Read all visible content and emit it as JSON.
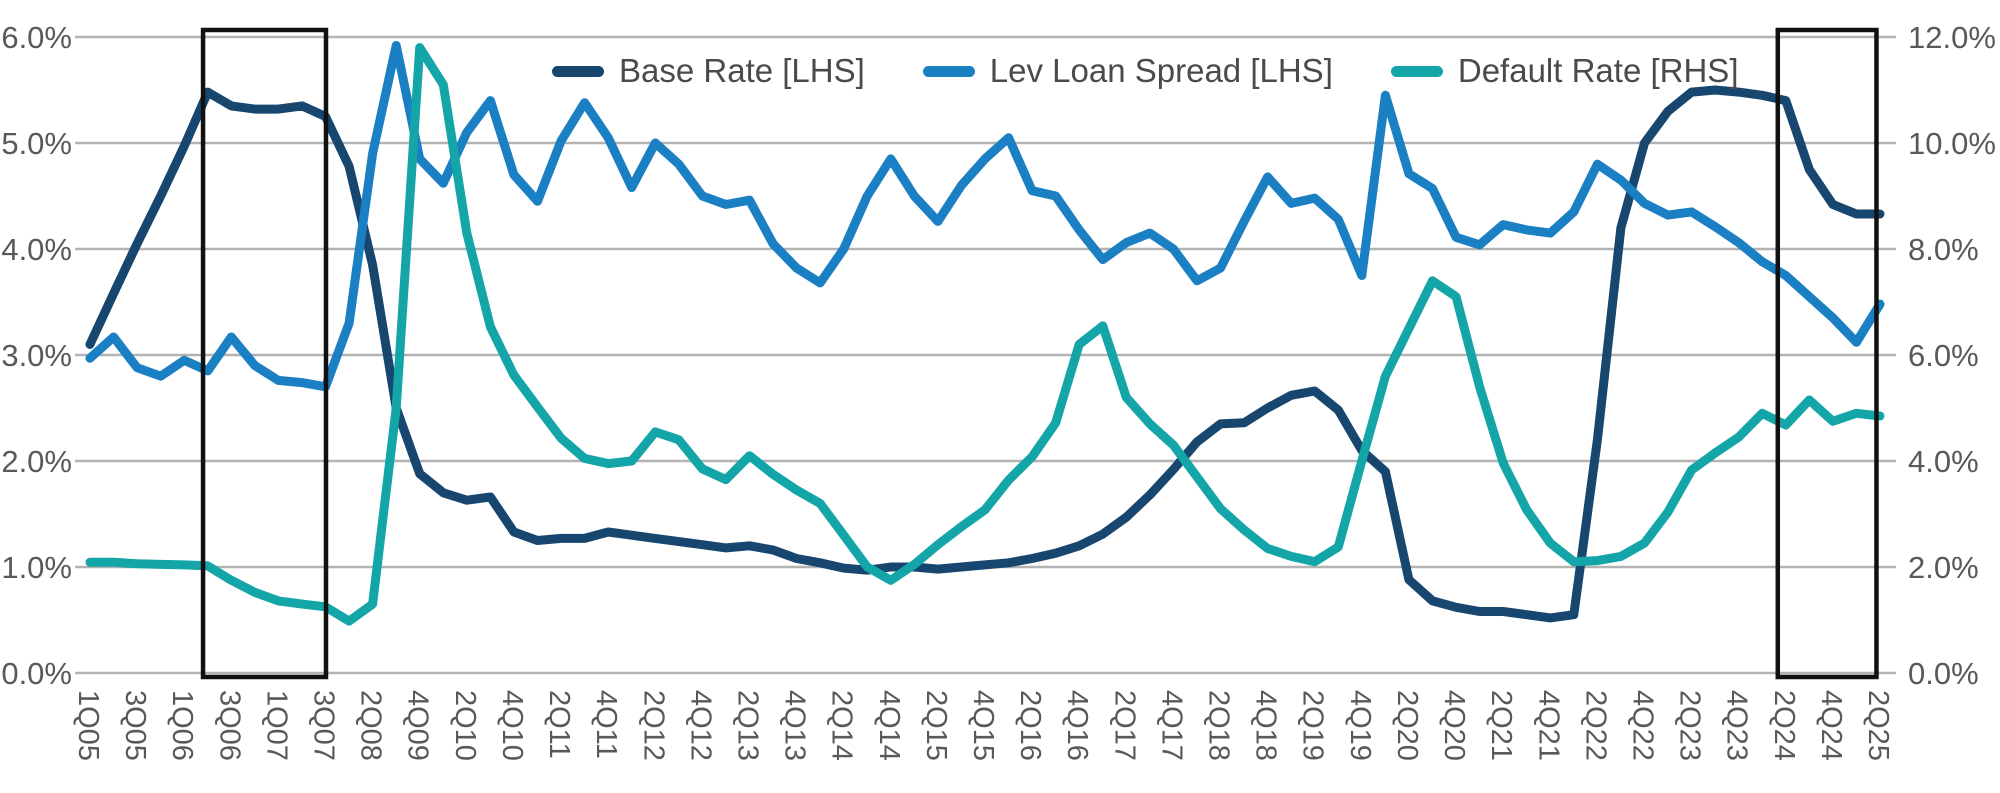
{
  "chart_data": {
    "type": "line",
    "title": "",
    "x_labels": [
      "1Q05",
      "3Q05",
      "1Q06",
      "3Q06",
      "1Q07",
      "3Q07",
      "2Q08",
      "4Q09",
      "2Q10",
      "4Q10",
      "2Q11",
      "4Q11",
      "2Q12",
      "4Q12",
      "2Q13",
      "4Q13",
      "2Q14",
      "4Q14",
      "2Q15",
      "4Q15",
      "2Q16",
      "4Q16",
      "2Q17",
      "4Q17",
      "2Q18",
      "4Q18",
      "2Q19",
      "4Q19",
      "2Q20",
      "4Q20",
      "2Q21",
      "4Q21",
      "2Q22",
      "4Q22",
      "2Q23",
      "4Q23",
      "2Q24",
      "4Q24",
      "2Q25"
    ],
    "points_per_label": 2,
    "left_axis": {
      "min": 0,
      "max": 6,
      "step": 1,
      "tick_labels": [
        "0.0%",
        "1.0%",
        "2.0%",
        "3.0%",
        "4.0%",
        "5.0%",
        "6.0%"
      ]
    },
    "right_axis": {
      "min": 0,
      "max": 12,
      "step": 2,
      "tick_labels": [
        "0.0%",
        "2.0%",
        "4.0%",
        "6.0%",
        "8.0%",
        "10.0%",
        "12.0%"
      ]
    },
    "grid": true,
    "legend_position": "top-center",
    "colors": {
      "base_rate": "#17466F",
      "lev_loan_spread": "#1B7FC4",
      "default_rate": "#14A5A8",
      "gridline": "#b3b3b3",
      "axis_text": "#595959",
      "highlight_box": "#111111"
    },
    "highlight_boxes": [
      {
        "name": "pre-gfc-window",
        "start_index": 4.8,
        "end_index": 10.02
      },
      {
        "name": "current-window",
        "start_index": 71.66,
        "end_index": 75.85
      }
    ],
    "series": [
      {
        "name": "Base Rate [LHS]",
        "axis": "left",
        "color": "#17466F",
        "values": [
          3.1,
          3.58,
          4.05,
          4.5,
          4.97,
          5.48,
          5.35,
          5.32,
          5.32,
          5.35,
          5.25,
          4.78,
          3.85,
          2.5,
          1.88,
          1.7,
          1.63,
          1.66,
          1.33,
          1.25,
          1.27,
          1.27,
          1.33,
          1.3,
          1.27,
          1.24,
          1.21,
          1.18,
          1.2,
          1.16,
          1.08,
          1.04,
          0.99,
          0.97,
          1.0,
          1.0,
          0.98,
          1.0,
          1.02,
          1.04,
          1.08,
          1.13,
          1.2,
          1.31,
          1.47,
          1.68,
          1.92,
          2.18,
          2.35,
          2.36,
          2.5,
          2.62,
          2.66,
          2.48,
          2.1,
          1.9,
          0.88,
          0.68,
          0.62,
          0.58,
          0.58,
          0.55,
          0.52,
          0.55,
          2.2,
          4.2,
          5.0,
          5.3,
          5.48,
          5.5,
          5.48,
          5.45,
          5.4,
          4.75,
          4.42,
          4.33,
          4.33
        ]
      },
      {
        "name": "Lev Loan Spread [LHS]",
        "axis": "left",
        "color": "#1B7FC4",
        "values": [
          2.97,
          3.17,
          2.88,
          2.8,
          2.95,
          2.85,
          3.17,
          2.9,
          2.76,
          2.74,
          2.7,
          3.3,
          4.9,
          5.92,
          4.85,
          4.62,
          5.1,
          5.4,
          4.7,
          4.45,
          5.02,
          5.38,
          5.05,
          4.58,
          5.0,
          4.8,
          4.5,
          4.42,
          4.46,
          4.05,
          3.82,
          3.68,
          4.0,
          4.5,
          4.85,
          4.5,
          4.26,
          4.6,
          4.85,
          5.05,
          4.55,
          4.5,
          4.18,
          3.9,
          4.06,
          4.15,
          4.0,
          3.7,
          3.82,
          4.26,
          4.68,
          4.43,
          4.48,
          4.28,
          3.75,
          5.45,
          4.71,
          4.57,
          4.11,
          4.04,
          4.23,
          4.18,
          4.15,
          4.35,
          4.8,
          4.65,
          4.43,
          4.32,
          4.35,
          4.21,
          4.06,
          3.88,
          3.75,
          3.55,
          3.35,
          3.12,
          3.48
        ]
      },
      {
        "name": "Default Rate [RHS]",
        "axis": "right",
        "color": "#14A5A8",
        "values": [
          2.09,
          2.09,
          2.06,
          2.05,
          2.04,
          2.02,
          1.75,
          1.52,
          1.36,
          1.3,
          1.25,
          0.98,
          1.3,
          5.0,
          11.8,
          11.1,
          8.3,
          6.53,
          5.62,
          5.02,
          4.43,
          4.05,
          3.95,
          4.0,
          4.55,
          4.4,
          3.85,
          3.65,
          4.1,
          3.75,
          3.45,
          3.2,
          2.6,
          2.0,
          1.75,
          2.05,
          2.42,
          2.76,
          3.08,
          3.64,
          4.08,
          4.72,
          6.2,
          6.55,
          5.2,
          4.7,
          4.3,
          3.7,
          3.1,
          2.7,
          2.35,
          2.2,
          2.1,
          2.38,
          4.0,
          5.6,
          6.5,
          7.4,
          7.1,
          5.4,
          3.96,
          3.08,
          2.45,
          2.1,
          2.12,
          2.2,
          2.45,
          3.04,
          3.83,
          4.15,
          4.45,
          4.9,
          4.68,
          5.15,
          4.75,
          4.9,
          4.85
        ]
      }
    ]
  }
}
